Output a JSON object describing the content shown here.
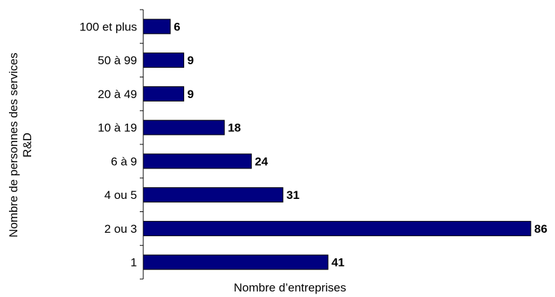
{
  "chart_data": {
    "type": "bar",
    "orientation": "horizontal",
    "categories": [
      "100 et plus",
      "50 à 99",
      "20 à 49",
      "10 à 19",
      "6 à 9",
      "4 ou 5",
      "2 ou 3",
      "1"
    ],
    "values": [
      6,
      9,
      9,
      18,
      24,
      31,
      86,
      41
    ],
    "value_labels": [
      "6",
      "9",
      "9",
      "18",
      "24",
      "31",
      "86",
      "41"
    ],
    "xlabel": "Nombre d’entreprises",
    "ylabel_lines": [
      "Nombre de personnes des services",
      "R&D"
    ],
    "xlim": [
      0,
      86
    ],
    "grid": false,
    "bar_color": "#000080"
  }
}
